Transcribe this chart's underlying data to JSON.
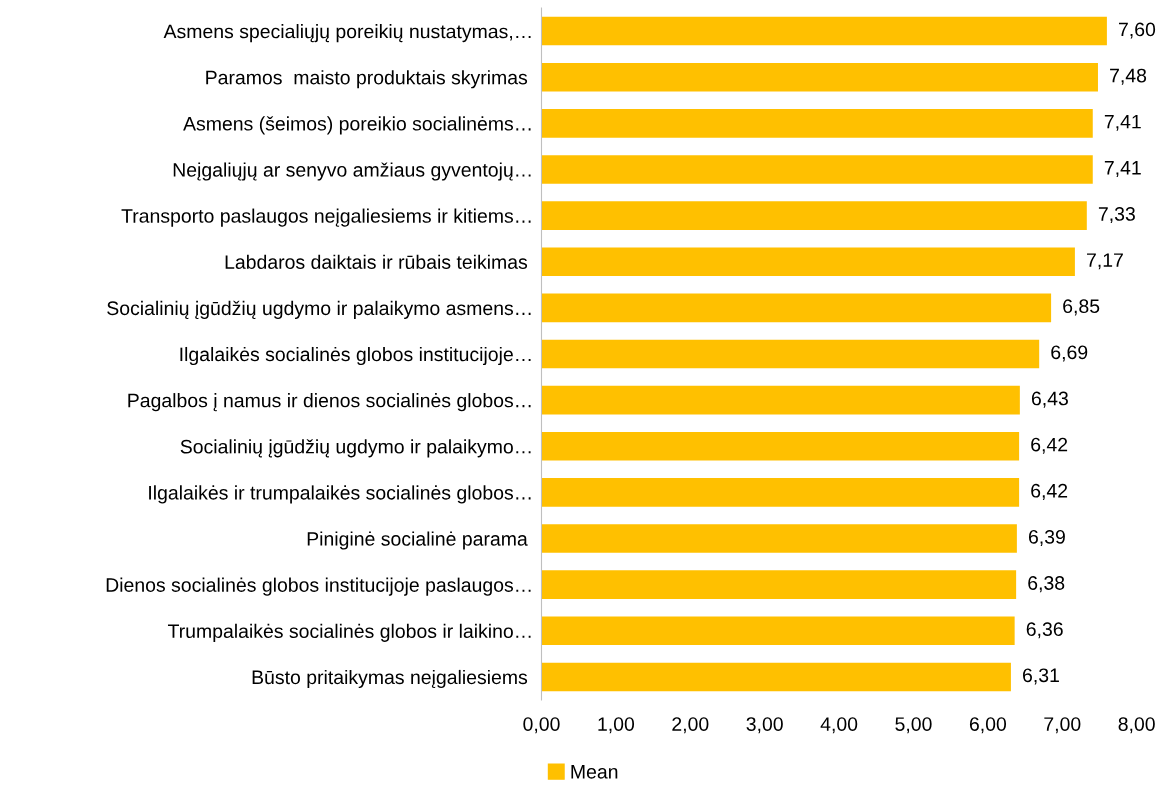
{
  "chart_data": {
    "type": "bar",
    "orientation": "horizontal",
    "categories": [
      "Asmens specialiųjų poreikių nustatymas,…",
      "Paramos  maisto produktais skyrimas ",
      "Asmens (šeimos) poreikio socialinėms…",
      "Neįgaliųjų ar senyvo amžiaus gyventojų…",
      "Transporto paslaugos neįgaliesiems ir kitiems…",
      "Labdaros daiktais ir rūbais teikimas ",
      "Socialinių įgūdžių ugdymo ir palaikymo asmens…",
      "Ilgalaikės socialinės globos institucijoje…",
      "Pagalbos į namus ir dienos socialinės globos…",
      "Socialinių įgūdžių ugdymo ir palaikymo…",
      "Ilgalaikės ir trumpalaikės socialinės globos…",
      "Piniginė socialinė parama ",
      "Dienos socialinės globos institucijoje paslaugos…",
      "Trumpalaikės socialinės globos ir laikino…",
      "Būsto pritaikymas neįgaliesiems "
    ],
    "series": [
      {
        "name": "Mean",
        "color": "#ffc000",
        "values": [
          7.6,
          7.48,
          7.41,
          7.41,
          7.33,
          7.17,
          6.85,
          6.69,
          6.43,
          6.42,
          6.42,
          6.39,
          6.38,
          6.36,
          6.31
        ],
        "value_labels": [
          "7,60",
          "7,48",
          "7,41",
          "7,41",
          "7,33",
          "7,17",
          "6,85",
          "6,69",
          "6,43",
          "6,42",
          "6,42",
          "6,39",
          "6,38",
          "6,36",
          "6,31"
        ]
      }
    ],
    "xlim": [
      0,
      8
    ],
    "xticks": [
      {
        "value": 0,
        "label": "0,00"
      },
      {
        "value": 1,
        "label": "1,00"
      },
      {
        "value": 2,
        "label": "2,00"
      },
      {
        "value": 3,
        "label": "3,00"
      },
      {
        "value": 4,
        "label": "4,00"
      },
      {
        "value": 5,
        "label": "5,00"
      },
      {
        "value": 6,
        "label": "6,00"
      },
      {
        "value": 7,
        "label": "7,00"
      },
      {
        "value": 8,
        "label": "8,00"
      }
    ],
    "grid": false,
    "legend": "bottom"
  }
}
